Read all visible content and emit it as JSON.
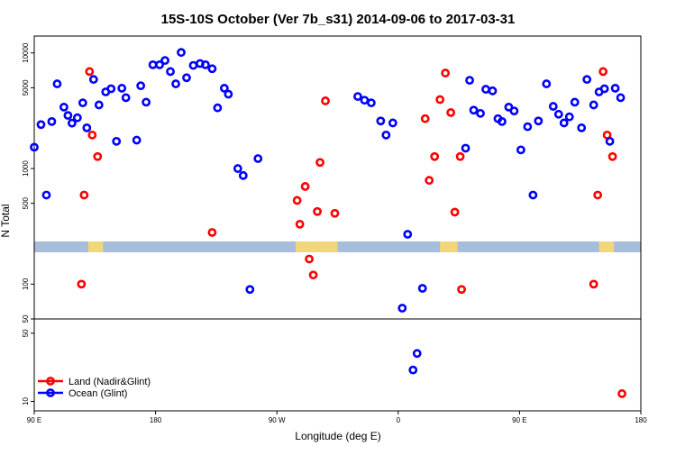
{
  "chart_data": {
    "type": "scatter",
    "title": "15S-10S October (Ver 7b_s31)   2014-09-06 to 2017-03-31",
    "xlabel": "Longitude (deg E)",
    "ylabel": "N Total",
    "x_scale": "longitude, 90 E to 180 to 90 W to 0 to 90 E to 180",
    "xlim_display": [
      90,
      450
    ],
    "x_ticks": [
      {
        "pos": 90,
        "label": "90 E"
      },
      {
        "pos": 180,
        "label": "180"
      },
      {
        "pos": 270,
        "label": "90 W"
      },
      {
        "pos": 360,
        "label": "0"
      },
      {
        "pos": 450,
        "label": "90 E"
      },
      {
        "pos": 540,
        "label": "180"
      }
    ],
    "upper_panel": {
      "y_scale": "log",
      "ylim": [
        50,
        14000
      ],
      "y_ticks": [
        "50",
        "100",
        "500",
        "1000",
        "5000",
        "10000"
      ]
    },
    "lower_panel": {
      "y_scale": "log",
      "ylim": [
        8,
        70
      ],
      "y_ticks": [
        "10",
        "50"
      ]
    },
    "legend": {
      "position": "bottom-left",
      "entries": [
        {
          "label": "Land (Nadir&Glint)",
          "color": "#ff0000"
        },
        {
          "label": "Ocean (Glint)",
          "color": "#0000ff"
        }
      ]
    },
    "series": [
      {
        "name": "Land (Nadir&Glint)",
        "color": "#ff0000",
        "points": [
          [
            125,
            100
          ],
          [
            127,
            590
          ],
          [
            131,
            6900
          ],
          [
            133,
            1950
          ],
          [
            137,
            1270
          ],
          [
            222,
            280
          ],
          [
            285,
            530
          ],
          [
            287,
            330
          ],
          [
            291,
            700
          ],
          [
            294,
            165
          ],
          [
            297,
            120
          ],
          [
            300,
            425
          ],
          [
            302,
            1130
          ],
          [
            306,
            3850
          ],
          [
            313,
            410
          ],
          [
            380,
            2700
          ],
          [
            383,
            790
          ],
          [
            387,
            1270
          ],
          [
            391,
            3950
          ],
          [
            395,
            6700
          ],
          [
            399,
            3050
          ],
          [
            402,
            420
          ],
          [
            406,
            1270
          ],
          [
            407,
            90
          ],
          [
            505,
            100
          ],
          [
            508,
            590
          ],
          [
            512,
            6900
          ],
          [
            515,
            1950
          ],
          [
            519,
            1270
          ],
          [
            526,
            12
          ]
        ]
      },
      {
        "name": "Ocean (Glint)",
        "color": "#0000ff",
        "points": [
          [
            90,
            1530
          ],
          [
            95,
            2400
          ],
          [
            99,
            590
          ],
          [
            103,
            2550
          ],
          [
            107,
            5400
          ],
          [
            112,
            3400
          ],
          [
            115,
            2880
          ],
          [
            118,
            2470
          ],
          [
            122,
            2750
          ],
          [
            126,
            3700
          ],
          [
            129,
            2250
          ],
          [
            134,
            5900
          ],
          [
            138,
            3550
          ],
          [
            143,
            4600
          ],
          [
            147,
            4900
          ],
          [
            151,
            1720
          ],
          [
            155,
            4950
          ],
          [
            158,
            4100
          ],
          [
            166,
            1760
          ],
          [
            169,
            5200
          ],
          [
            173,
            3750
          ],
          [
            178,
            7900
          ],
          [
            183,
            7900
          ],
          [
            187,
            8600
          ],
          [
            191,
            6900
          ],
          [
            195,
            5400
          ],
          [
            199,
            10100
          ],
          [
            203,
            6100
          ],
          [
            208,
            7800
          ],
          [
            213,
            8100
          ],
          [
            217,
            7900
          ],
          [
            222,
            7300
          ],
          [
            226,
            3350
          ],
          [
            231,
            4950
          ],
          [
            234,
            4400
          ],
          [
            241,
            1000
          ],
          [
            245,
            870
          ],
          [
            250,
            90
          ],
          [
            256,
            1220
          ],
          [
            330,
            4200
          ],
          [
            335,
            3900
          ],
          [
            340,
            3700
          ],
          [
            347,
            2580
          ],
          [
            351,
            1950
          ],
          [
            356,
            2480
          ],
          [
            363,
            62
          ],
          [
            367,
            270
          ],
          [
            371,
            21
          ],
          [
            374,
            31
          ],
          [
            378,
            92
          ],
          [
            410,
            1500
          ],
          [
            413,
            5800
          ],
          [
            416,
            3200
          ],
          [
            421,
            3000
          ],
          [
            425,
            4850
          ],
          [
            430,
            4700
          ],
          [
            434,
            2700
          ],
          [
            437,
            2550
          ],
          [
            442,
            3400
          ],
          [
            446,
            3150
          ],
          [
            451,
            1450
          ],
          [
            456,
            2300
          ],
          [
            460,
            590
          ],
          [
            464,
            2580
          ],
          [
            470,
            5400
          ],
          [
            475,
            3450
          ],
          [
            479,
            2950
          ],
          [
            483,
            2480
          ],
          [
            487,
            2800
          ],
          [
            491,
            3750
          ],
          [
            496,
            2250
          ],
          [
            500,
            5900
          ],
          [
            505,
            3550
          ],
          [
            509,
            4600
          ],
          [
            513,
            4900
          ],
          [
            517,
            1720
          ],
          [
            521,
            4950
          ],
          [
            525,
            4100
          ]
        ]
      }
    ]
  }
}
